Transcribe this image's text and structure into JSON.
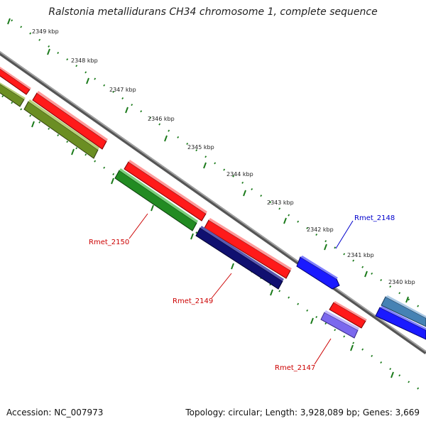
{
  "title": "Ralstonia metallidurans CH34 chromosome 1, complete sequence",
  "scale": {
    "unit": "kbp",
    "ticks": [
      "2349",
      "2348",
      "2347",
      "2346",
      "2345",
      "2344",
      "2343",
      "2342",
      "2341",
      "2340"
    ]
  },
  "genes": [
    {
      "name": "Rmet_2150",
      "label_color": "#cc0000"
    },
    {
      "name": "Rmet_2149",
      "label_color": "#cc0000"
    },
    {
      "name": "Rmet_2148",
      "label_color": "#0000cc"
    },
    {
      "name": "Rmet_2147",
      "label_color": "#cc0000"
    }
  ],
  "colors": {
    "backbone": "#808080",
    "forward_red": "#ff1a1a",
    "reverse_olive": "#6b8e23",
    "reverse_green": "#228b22",
    "reverse_navy": "#101070",
    "forward_blue": "#1a1aff",
    "reverse_purple": "#7b68ee",
    "steel_blue": "#4682b4",
    "tick_green": "#1a7a1a"
  },
  "footer": {
    "accession": "Accession: NC_007973",
    "topology": "Topology: circular; Length: 3,928,089 bp; Genes: 3,669"
  }
}
